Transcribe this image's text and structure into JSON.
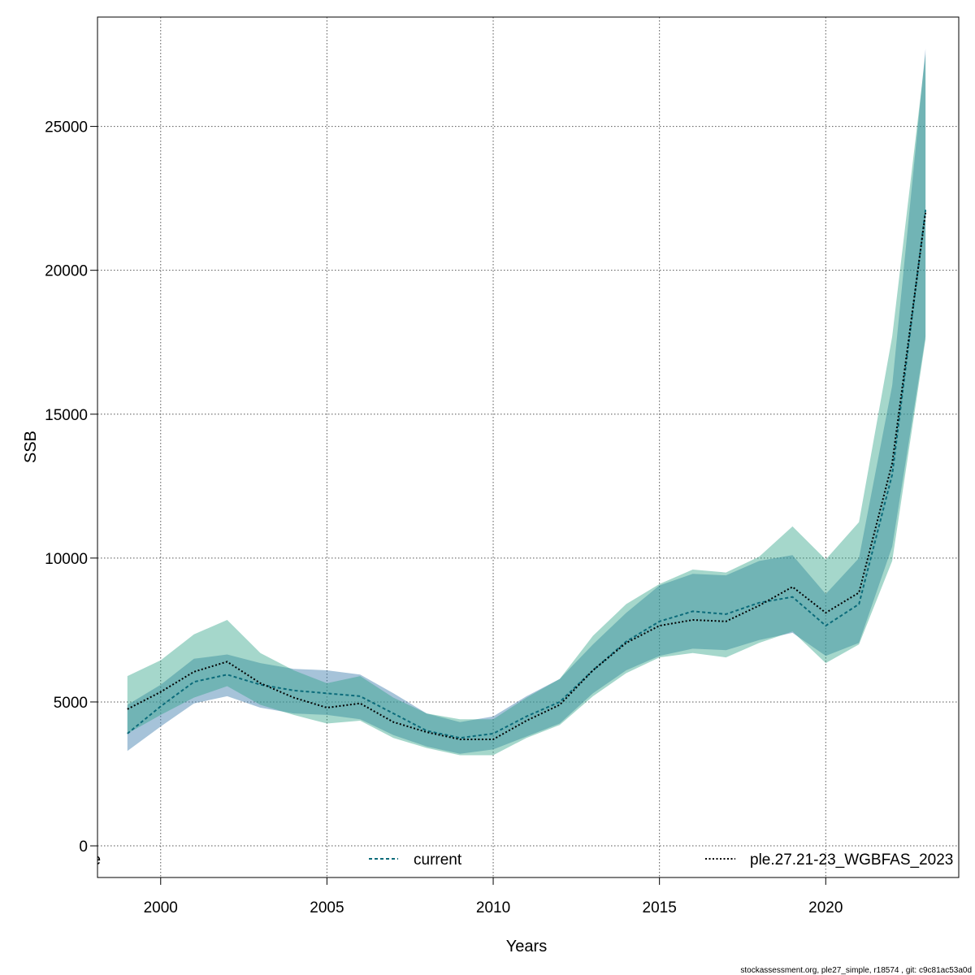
{
  "chart_data": {
    "type": "line",
    "xlabel": "Years",
    "ylabel": "SSB",
    "xlim": [
      1998.1,
      2024.0
    ],
    "ylim": [
      -1100,
      28800
    ],
    "x_ticks": [
      2000,
      2005,
      2010,
      2015,
      2020
    ],
    "x_tick_labels": [
      "2000",
      "2005",
      "2010",
      "2015",
      "2020"
    ],
    "y_ticks": [
      0,
      5000,
      10000,
      15000,
      20000,
      25000
    ],
    "y_tick_labels": [
      "0",
      "5000",
      "10000",
      "15000",
      "20000",
      "25000"
    ],
    "grid": true,
    "legend_placement": "bottom",
    "legend_entries": [
      "se",
      "current",
      "ple.27.21-23_WGBFAS_2023"
    ],
    "x": [
      1999,
      2000,
      2001,
      2002,
      2003,
      2004,
      2005,
      2006,
      2007,
      2008,
      2009,
      2010,
      2011,
      2012,
      2013,
      2014,
      2015,
      2016,
      2017,
      2018,
      2019,
      2020,
      2021,
      2022,
      2023
    ],
    "series": [
      {
        "name": "current",
        "color": "#0b6b7a",
        "band_color": "#2e9c89",
        "line_style": "dashed",
        "values": [
          3900,
          4850,
          5700,
          5950,
          5600,
          5400,
          5300,
          5200,
          4600,
          4000,
          3750,
          3900,
          4500,
          5000,
          6100,
          7100,
          7800,
          8150,
          8050,
          8450,
          8650,
          7650,
          8400,
          12900,
          22100
        ],
        "lower": [
          3300,
          4150,
          4950,
          5200,
          4800,
          4600,
          4550,
          4400,
          3850,
          3450,
          3200,
          3350,
          3800,
          4250,
          5300,
          6100,
          6600,
          6850,
          6800,
          7150,
          7400,
          6600,
          7050,
          10400,
          17700
        ],
        "upper": [
          4900,
          5600,
          6500,
          6650,
          6350,
          6150,
          6100,
          5950,
          5300,
          4600,
          4300,
          4500,
          5200,
          5800,
          7000,
          8100,
          9050,
          9450,
          9400,
          9900,
          10100,
          8750,
          10000,
          16000,
          27700
        ]
      },
      {
        "name": "ple.27.21-23_WGBFAS_2023",
        "color": "#000000",
        "band_color": "#2e9c89",
        "line_style": "dotted",
        "values": [
          4750,
          5350,
          6050,
          6400,
          5650,
          5150,
          4800,
          4950,
          4300,
          3950,
          3700,
          3700,
          4350,
          4900,
          6100,
          7050,
          7650,
          7850,
          7800,
          8350,
          9000,
          8100,
          8800,
          13300,
          22000
        ],
        "lower": [
          3900,
          4550,
          5150,
          5550,
          4900,
          4550,
          4250,
          4350,
          3750,
          3400,
          3150,
          3150,
          3750,
          4200,
          5200,
          6000,
          6550,
          6700,
          6550,
          7050,
          7450,
          6350,
          7000,
          9900,
          17600
        ],
        "upper": [
          5900,
          6450,
          7350,
          7850,
          6700,
          6100,
          5650,
          5900,
          5150,
          4600,
          4400,
          4400,
          5150,
          5800,
          7300,
          8400,
          9100,
          9600,
          9500,
          10050,
          11100,
          9950,
          11250,
          17700,
          27500
        ]
      }
    ]
  },
  "footer": "stockassessment.org, ple27_simple, r18574 , git: c9c81ac53a0d"
}
